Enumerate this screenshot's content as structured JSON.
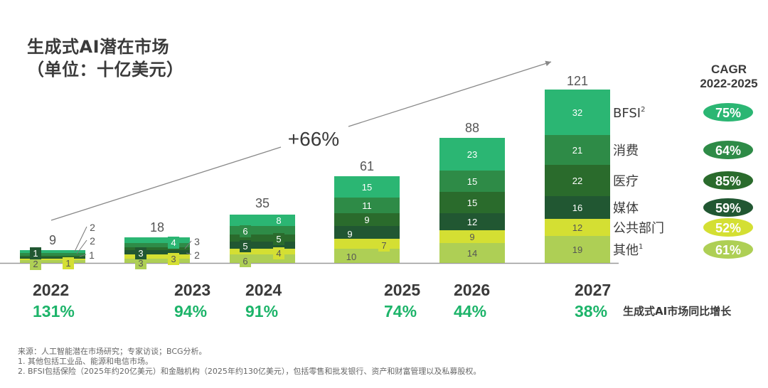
{
  "title_line1": "生成式AI潜在市场",
  "title_line2": "（单位：十亿美元）",
  "cagr_header_line1": "CAGR",
  "cagr_header_line2": "2022-2025",
  "growth_caption": "生成式AI市场同比增长",
  "overall_growth_label": "+66%",
  "footnotes": [
    "来源：人工智能潜在市场研究；专家访谈；BCG分析。",
    "1. 其他包括工业品、能源和电信市场。",
    "2. BFSI包括保险（2025年约20亿美元）和金融机构（2025年约130亿美元），包括零售和批发银行、资产和财富管理以及私募股权。"
  ],
  "chart_data": {
    "type": "bar",
    "stacked": true,
    "title": "生成式AI潜在市场（单位：十亿美元）",
    "xlabel": "",
    "ylabel": "十亿美元",
    "categories": [
      "2022",
      "2023",
      "2024",
      "2025",
      "2026",
      "2027"
    ],
    "totals": [
      9,
      18,
      35,
      61,
      88,
      121
    ],
    "yoy_growth": [
      "131%",
      "94%",
      "91%",
      "74%",
      "44%",
      "38%"
    ],
    "series": [
      {
        "name": "其他",
        "sup": "1",
        "color": "#AECF55",
        "label_color": "#555555",
        "cagr": "61%",
        "cagr_text_color": "#ffffff",
        "values": [
          2,
          3,
          6,
          10,
          14,
          19
        ]
      },
      {
        "name": "公共部门",
        "sup": "",
        "color": "#D4DF33",
        "label_color": "#555555",
        "cagr": "52%",
        "cagr_text_color": "#ffffff",
        "values": [
          1,
          3,
          4,
          7,
          9,
          12
        ]
      },
      {
        "name": "媒体",
        "sup": "",
        "color": "#215732",
        "label_color": "#ffffff",
        "cagr": "59%",
        "cagr_text_color": "#ffffff",
        "values": [
          1,
          3,
          5,
          9,
          12,
          16
        ]
      },
      {
        "name": "医疗",
        "sup": "",
        "color": "#2A6B2C",
        "label_color": "#ffffff",
        "cagr": "85%",
        "cagr_text_color": "#ffffff",
        "values": [
          1,
          2,
          5,
          9,
          15,
          22
        ]
      },
      {
        "name": "消费",
        "sup": "",
        "color": "#2E8B47",
        "label_color": "#ffffff",
        "cagr": "64%",
        "cagr_text_color": "#ffffff",
        "values": [
          2,
          3,
          6,
          11,
          15,
          21
        ]
      },
      {
        "name": "BFSI",
        "sup": "2",
        "color": "#2BB673",
        "label_color": "#ffffff",
        "cagr": "75%",
        "cagr_text_color": "#ffffff",
        "values": [
          2,
          4,
          8,
          15,
          23,
          32
        ]
      }
    ],
    "ylim": [
      0,
      121
    ],
    "grid": false,
    "legend": "right",
    "growth_color": "#1DB46A"
  }
}
